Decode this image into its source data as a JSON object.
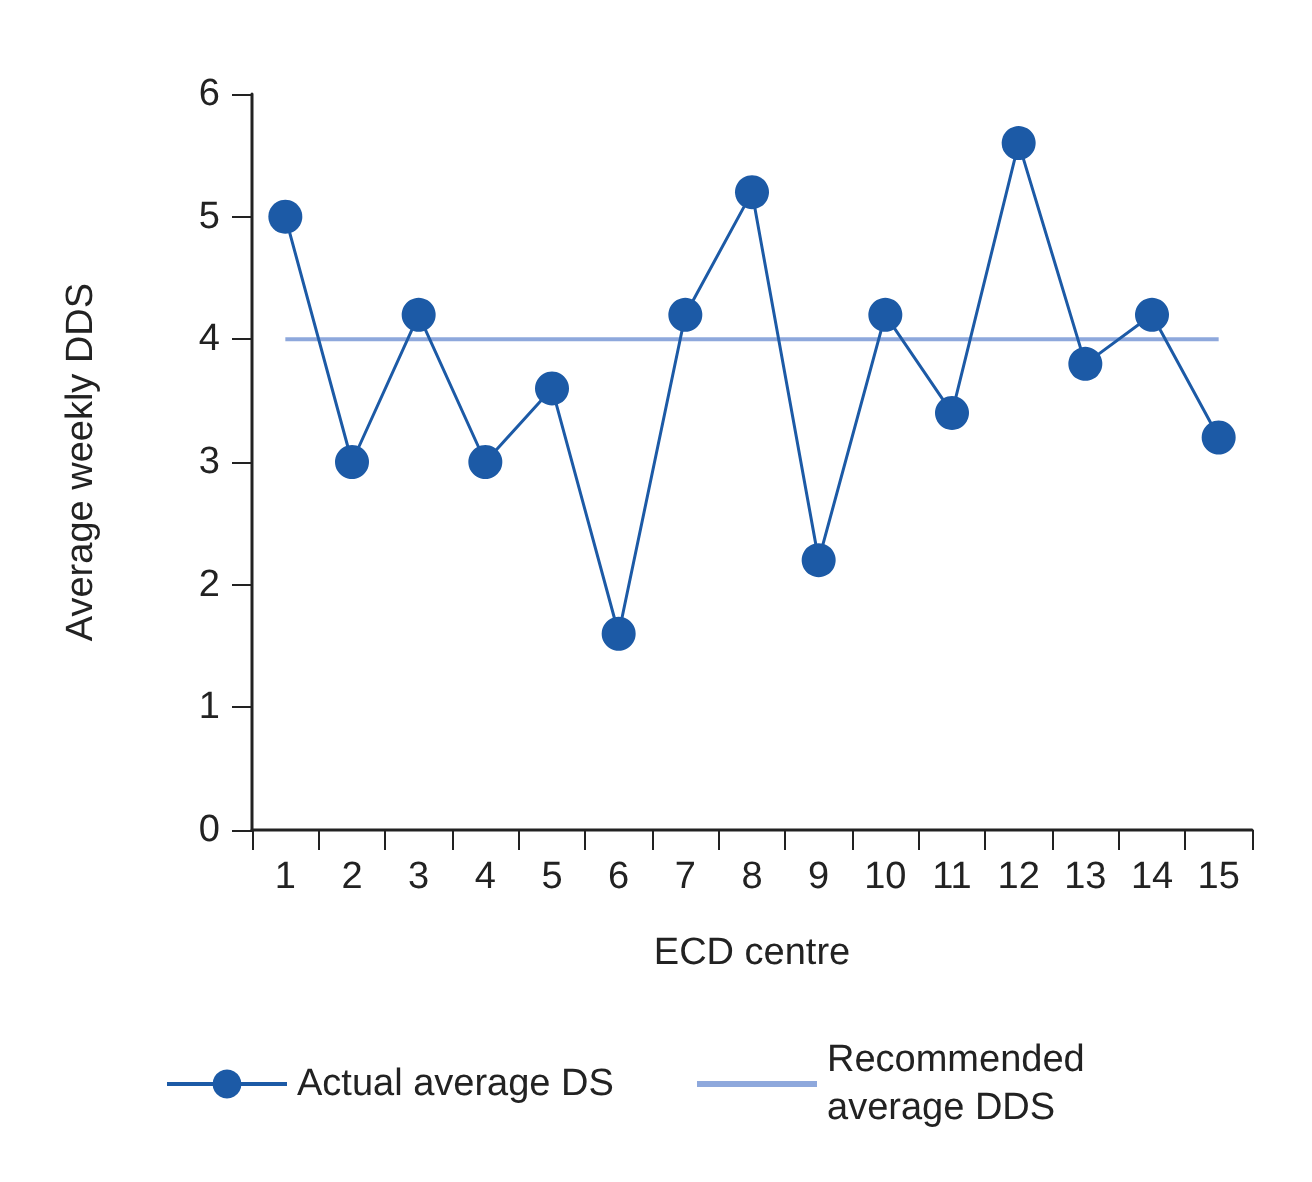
{
  "chart_data": {
    "type": "line",
    "xlabel": "ECD centre",
    "ylabel": "Average weekly DDS",
    "categories": [
      "1",
      "2",
      "3",
      "4",
      "5",
      "6",
      "7",
      "8",
      "9",
      "10",
      "11",
      "12",
      "13",
      "14",
      "15"
    ],
    "series": [
      {
        "name": "Actual average DS",
        "color": "#1c5aa6",
        "values": [
          5,
          3,
          4.2,
          3,
          3.6,
          1.6,
          4.2,
          5.2,
          2.2,
          4.2,
          3.4,
          5.6,
          3.8,
          4.2,
          3.2
        ]
      },
      {
        "name": "Recommended average DDS",
        "color": "#8ea8dc",
        "marker": "none",
        "values": [
          4,
          4,
          4,
          4,
          4,
          4,
          4,
          4,
          4,
          4,
          4,
          4,
          4,
          4,
          4
        ]
      }
    ],
    "ylim": [
      0,
      6
    ],
    "yticks": [
      0,
      1,
      2,
      3,
      4,
      5,
      6
    ],
    "grid": false,
    "legend": "bottom",
    "marker": "circle",
    "line_style": "solid"
  }
}
